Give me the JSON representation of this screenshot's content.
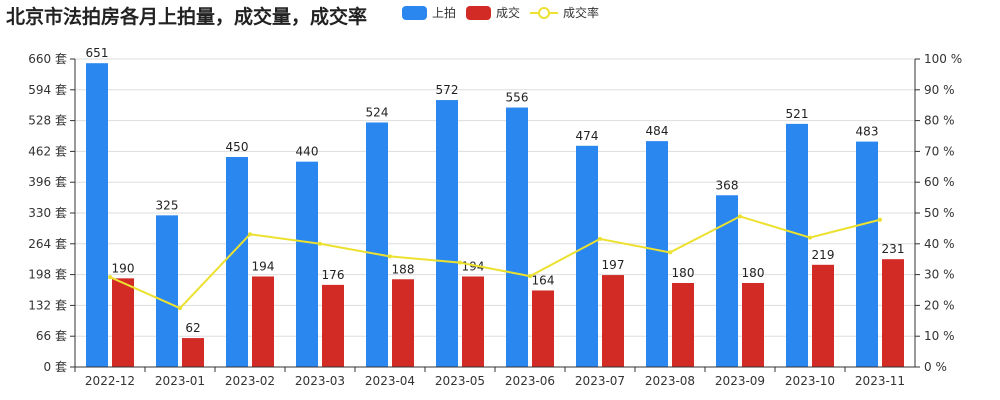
{
  "chart_data": {
    "type": "bar",
    "title": "北京市法拍房各月上拍量，成交量，成交率",
    "categories": [
      "2022-12",
      "2023-01",
      "2023-02",
      "2023-03",
      "2023-04",
      "2023-05",
      "2023-06",
      "2023-07",
      "2023-08",
      "2023-09",
      "2023-10",
      "2023-11"
    ],
    "series": [
      {
        "name": "上拍",
        "type": "bar",
        "axis": "left",
        "color": "#2b87f0",
        "values": [
          651,
          325,
          450,
          440,
          524,
          572,
          556,
          474,
          484,
          368,
          521,
          483
        ]
      },
      {
        "name": "成交",
        "type": "bar",
        "axis": "left",
        "color": "#d22b25",
        "values": [
          190,
          62,
          194,
          176,
          188,
          194,
          164,
          197,
          180,
          180,
          219,
          231
        ]
      },
      {
        "name": "成交率",
        "type": "line",
        "axis": "right",
        "color": "#ece12f",
        "values": [
          29.2,
          19.1,
          43.1,
          40.0,
          35.9,
          33.9,
          29.5,
          41.6,
          37.2,
          48.9,
          42.0,
          47.8
        ]
      }
    ],
    "y_left": {
      "range": [
        0,
        660
      ],
      "ticks": [
        0,
        66,
        132,
        198,
        264,
        330,
        396,
        462,
        528,
        594,
        660
      ],
      "unit": "套"
    },
    "y_right": {
      "range": [
        0,
        100
      ],
      "ticks": [
        0,
        10,
        20,
        30,
        40,
        50,
        60,
        70,
        80,
        90,
        100
      ],
      "unit": "%"
    },
    "grid": true,
    "legend_position": "top"
  }
}
